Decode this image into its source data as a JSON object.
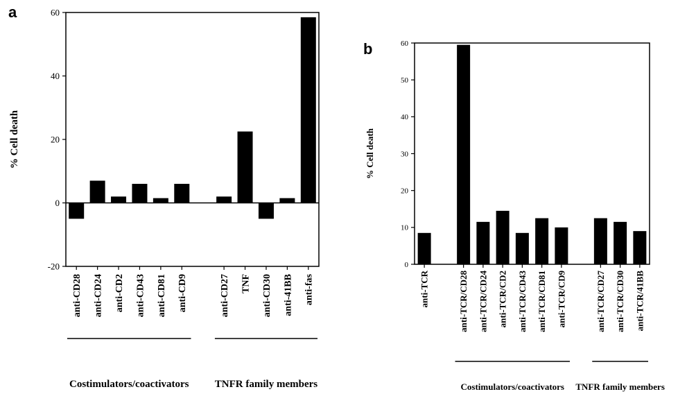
{
  "chart_data": [
    {
      "panel": "a",
      "type": "bar",
      "ylabel": "% Cell death",
      "ylim": [
        -20,
        60
      ],
      "yticks": [
        -20,
        0,
        20,
        40,
        60
      ],
      "categories": [
        "anti-CD28",
        "anti-CD24",
        "anti-CD2",
        "anti-CD43",
        "anti-CD81",
        "anti-CD9",
        "anti-CD27",
        "TNF",
        "anti-CD30",
        "anti-41BB",
        "anti-fas"
      ],
      "values": [
        -5,
        7,
        2,
        6,
        1.5,
        6,
        2,
        22.5,
        -5,
        1.5,
        58.5
      ],
      "groups": [
        {
          "label": "Costimulators/coactivators",
          "members": [
            "anti-CD28",
            "anti-CD24",
            "anti-CD2",
            "anti-CD43",
            "anti-CD81",
            "anti-CD9"
          ]
        },
        {
          "label": "TNFR family members",
          "members": [
            "anti-CD27",
            "TNF",
            "anti-CD30",
            "anti-41BB",
            "anti-fas"
          ]
        }
      ],
      "color": "#000000"
    },
    {
      "panel": "b",
      "type": "bar",
      "ylabel": "% Cell death",
      "ylim": [
        0,
        60
      ],
      "yticks": [
        0,
        10,
        20,
        30,
        40,
        50,
        60
      ],
      "categories": [
        "anti-TCR",
        "anti-TCR/CD28",
        "anti-TCR/CD24",
        "anti-TCR/CD2",
        "anti-TCR/CD43",
        "anti-TCR/CD81",
        "anti-TCR/CD9",
        "anti-TCR/CD27",
        "anti-TCR/CD30",
        "anti-TCR/41BB"
      ],
      "values": [
        8.5,
        59.5,
        11.5,
        14.5,
        8.5,
        12.5,
        10,
        12.5,
        11.5,
        9
      ],
      "groups": [
        {
          "label": "Costimulators/coactivators",
          "members": [
            "anti-TCR/CD28",
            "anti-TCR/CD24",
            "anti-TCR/CD2",
            "anti-TCR/CD43",
            "anti-TCR/CD81",
            "anti-TCR/CD9"
          ]
        },
        {
          "label": "TNFR family members",
          "members": [
            "anti-TCR/CD27",
            "anti-TCR/CD30",
            "anti-TCR/41BB"
          ]
        }
      ],
      "color": "#000000"
    }
  ]
}
